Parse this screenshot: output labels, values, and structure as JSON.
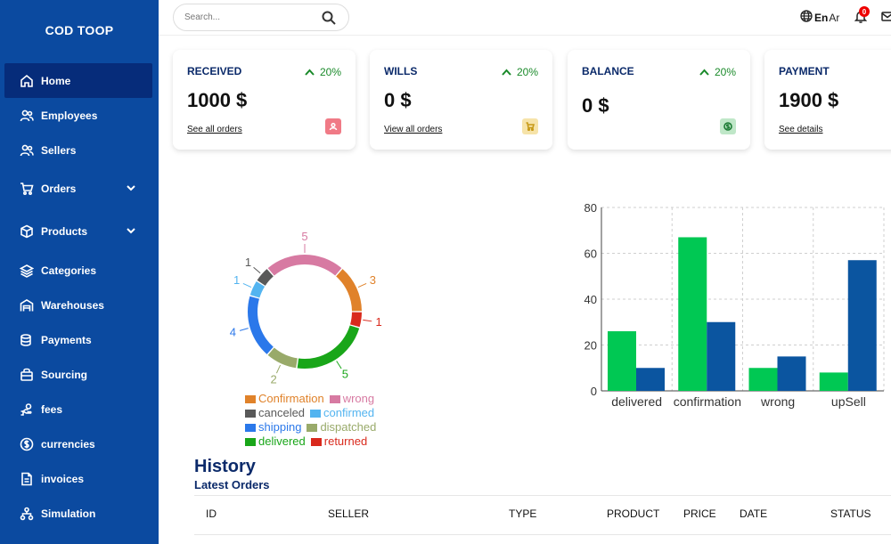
{
  "sidebar": {
    "brand": "COD TOOP",
    "items": [
      {
        "label": "Home",
        "icon": "home-icon"
      },
      {
        "label": "Employees",
        "icon": "users-icon"
      },
      {
        "label": "Sellers",
        "icon": "users-icon"
      },
      {
        "label": "Orders",
        "icon": "cart-icon"
      },
      {
        "label": "Products",
        "icon": "box-icon"
      },
      {
        "label": "Categories",
        "icon": "layers-icon"
      },
      {
        "label": "Warehouses",
        "icon": "warehouse-icon"
      },
      {
        "label": "Payments",
        "icon": "coins-icon"
      },
      {
        "label": "Sourcing",
        "icon": "package-icon"
      },
      {
        "label": "fees",
        "icon": "hand-coin-icon"
      },
      {
        "label": "currencies",
        "icon": "dollar-icon"
      },
      {
        "label": "invoices",
        "icon": "invoice-icon"
      },
      {
        "label": "Simulation",
        "icon": "flow-icon"
      }
    ]
  },
  "topbar": {
    "search_placeholder": "Search...",
    "lang_en": "En",
    "lang_ar": "Ar",
    "notification_count": "0"
  },
  "cards": [
    {
      "title": "RECEIVED",
      "trend": "20%",
      "value": "1000 $",
      "link": "See all orders",
      "icon_color": "#f07a86"
    },
    {
      "title": "WILLS",
      "trend": "20%",
      "value": "0 $",
      "link": "View all orders",
      "icon_color": "#f6e3a9"
    },
    {
      "title": "BALANCE",
      "trend": "20%",
      "value": "0 $",
      "link": "",
      "icon_color": "#bfe7c8"
    },
    {
      "title": "PAYMENT",
      "trend": "",
      "value": "1900 $",
      "link": "See details",
      "icon_color": ""
    }
  ],
  "chart_data": [
    {
      "type": "pie",
      "categories": [
        "wrong",
        "Confirmation",
        "returned",
        "delivered",
        "dispatched",
        "shipping",
        "confirmed",
        "canceled"
      ],
      "values": [
        5,
        3,
        1,
        5,
        2,
        4,
        1,
        1
      ],
      "colors": [
        "#d77aa2",
        "#e0822a",
        "#d9291c",
        "#19a619",
        "#99aa6a",
        "#2b78ea",
        "#53b4f0",
        "#595959"
      ],
      "legend": [
        [
          "Confirmation",
          "wrong"
        ],
        [
          "canceled",
          "confirmed"
        ],
        [
          "shipping",
          "dispatched"
        ],
        [
          "delivered",
          "returned"
        ]
      ]
    },
    {
      "type": "bar",
      "categories": [
        "delivered",
        "confirmation",
        "wrong",
        "upSell"
      ],
      "series": [
        {
          "values": [
            26,
            67,
            10,
            8
          ],
          "color": "#00c853"
        },
        {
          "values": [
            10,
            30,
            15,
            57
          ],
          "color": "#0b55a0"
        }
      ],
      "ylim": [
        0,
        80
      ],
      "yticks": [
        0,
        20,
        40,
        60,
        80
      ],
      "grid": true
    }
  ],
  "history": {
    "title": "History",
    "subtitle": "Latest Orders",
    "columns": [
      "ID",
      "SELLER",
      "TYPE",
      "PRODUCT",
      "PRICE",
      "DATE",
      "STATUS"
    ]
  }
}
